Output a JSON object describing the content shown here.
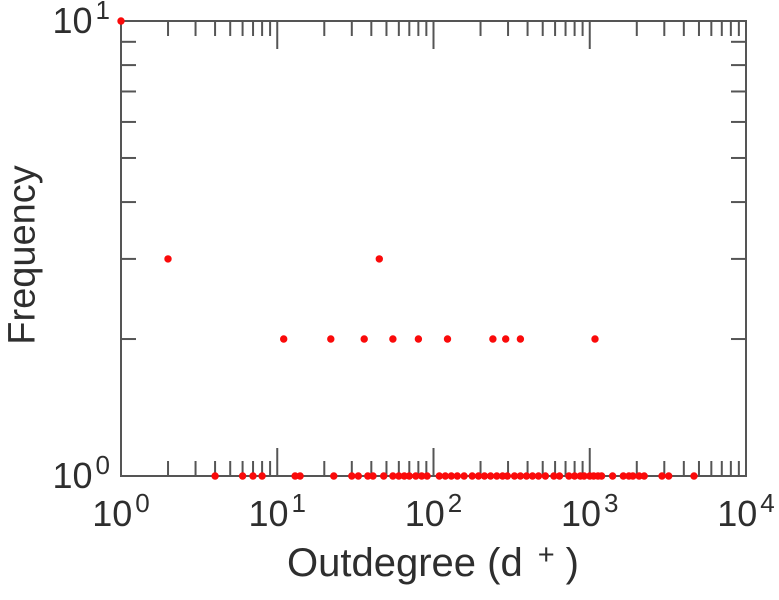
{
  "chart_data": {
    "type": "scatter",
    "title": "",
    "xlabel": {
      "prefix": "Outdegree (d",
      "superscript": "+",
      "suffix": ")"
    },
    "ylabel": "Frequency",
    "xscale": "log",
    "yscale": "log",
    "xlim": [
      1,
      10000
    ],
    "ylim": [
      1,
      10
    ],
    "grid": false,
    "legend": false,
    "tick_base": "10",
    "x_tick_exponents": [
      0,
      1,
      2,
      3,
      4
    ],
    "y_tick_exponents": [
      0,
      1
    ],
    "marker_color": "#fa0a0a",
    "axis_color": "#555555",
    "text_color": "#2e2e2e",
    "series": [
      {
        "name": "outdegree-frequency",
        "points": [
          [
            1,
            10
          ],
          [
            2,
            3
          ],
          [
            45,
            3
          ],
          [
            11,
            2
          ],
          [
            22,
            2
          ],
          [
            36,
            2
          ],
          [
            55,
            2
          ],
          [
            80,
            2
          ],
          [
            123,
            2
          ],
          [
            240,
            2
          ],
          [
            290,
            2
          ],
          [
            360,
            2
          ],
          [
            1080,
            2
          ],
          [
            4,
            1
          ],
          [
            6,
            1
          ],
          [
            7,
            1
          ],
          [
            8,
            1
          ],
          [
            13,
            1
          ],
          [
            14,
            1
          ],
          [
            23,
            1
          ],
          [
            30,
            1
          ],
          [
            33,
            1
          ],
          [
            38,
            1
          ],
          [
            41,
            1
          ],
          [
            48,
            1
          ],
          [
            55,
            1
          ],
          [
            60,
            1
          ],
          [
            65,
            1
          ],
          [
            70,
            1
          ],
          [
            77,
            1
          ],
          [
            84,
            1
          ],
          [
            91,
            1
          ],
          [
            109,
            1
          ],
          [
            119,
            1
          ],
          [
            130,
            1
          ],
          [
            142,
            1
          ],
          [
            157,
            1
          ],
          [
            177,
            1
          ],
          [
            194,
            1
          ],
          [
            212,
            1
          ],
          [
            232,
            1
          ],
          [
            254,
            1
          ],
          [
            277,
            1
          ],
          [
            297,
            1
          ],
          [
            330,
            1
          ],
          [
            360,
            1
          ],
          [
            394,
            1
          ],
          [
            430,
            1
          ],
          [
            470,
            1
          ],
          [
            520,
            1
          ],
          [
            590,
            1
          ],
          [
            640,
            1
          ],
          [
            735,
            1
          ],
          [
            800,
            1
          ],
          [
            870,
            1
          ],
          [
            920,
            1
          ],
          [
            1000,
            1
          ],
          [
            1060,
            1
          ],
          [
            1130,
            1
          ],
          [
            1190,
            1
          ],
          [
            1400,
            1
          ],
          [
            1640,
            1
          ],
          [
            1780,
            1
          ],
          [
            1890,
            1
          ],
          [
            2070,
            1
          ],
          [
            2230,
            1
          ],
          [
            2900,
            1
          ],
          [
            3200,
            1
          ],
          [
            4650,
            1
          ]
        ]
      }
    ]
  }
}
